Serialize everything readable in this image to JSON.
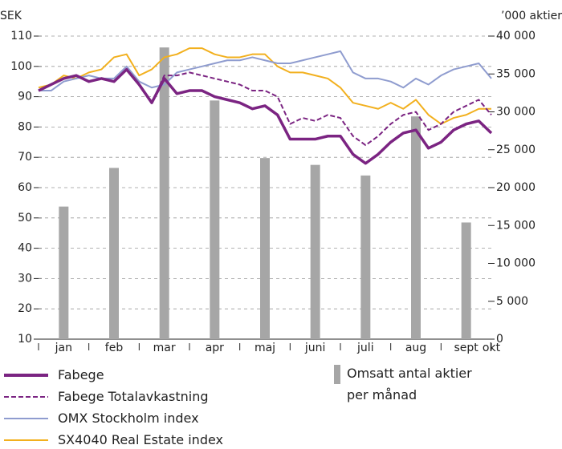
{
  "chart_data": {
    "type": "line",
    "y_label": "SEK",
    "y2_label": "’000 aktier",
    "categories": [
      null,
      null,
      "jan",
      null,
      null,
      null,
      "feb",
      null,
      null,
      null,
      "mar",
      null,
      null,
      null,
      "apr",
      null,
      null,
      null,
      "maj",
      null,
      null,
      null,
      "juni",
      null,
      null,
      null,
      "juli",
      null,
      null,
      null,
      "aug",
      null,
      null,
      null,
      "sept",
      null,
      "okt"
    ],
    "ylim": [
      10,
      110
    ],
    "yticks": [
      10,
      20,
      30,
      40,
      50,
      60,
      70,
      80,
      90,
      100,
      110
    ],
    "y2lim": [
      0,
      40000
    ],
    "y2ticks": [
      0,
      {
        "value": 5000,
        "label": "5 000"
      },
      {
        "value": 10000,
        "label": "10 000"
      },
      {
        "value": 15000,
        "label": "15 000"
      },
      {
        "value": 20000,
        "label": "20 000"
      },
      {
        "value": 25000,
        "label": "25 000"
      },
      {
        "value": 30000,
        "label": "30 000"
      },
      {
        "value": 35000,
        "label": "35 000"
      },
      {
        "value": 40000,
        "label": "40 000"
      }
    ],
    "grid": true,
    "series": [
      {
        "name": "Omsatt antal aktier per månad",
        "type": "bar",
        "axis": "y2",
        "color": "#a6a6a6",
        "values": [
          null,
          null,
          17500,
          null,
          null,
          null,
          22600,
          null,
          null,
          null,
          38500,
          null,
          null,
          null,
          31500,
          null,
          null,
          null,
          23900,
          null,
          null,
          null,
          23000,
          null,
          null,
          null,
          21600,
          null,
          null,
          null,
          29400,
          null,
          null,
          null,
          15400,
          null,
          null
        ]
      },
      {
        "name": "SX4040 Real Estate index",
        "type": "line",
        "color": "#f2b01e",
        "style": "solid",
        "values": [
          93,
          94,
          97,
          96,
          98,
          99,
          103,
          104,
          97,
          99,
          103,
          104,
          106,
          106,
          104,
          103,
          103,
          104,
          104,
          100,
          98,
          98,
          97,
          96,
          93,
          88,
          87,
          86,
          88,
          86,
          89,
          84,
          81,
          83,
          84,
          86,
          86
        ]
      },
      {
        "name": "OMX Stockholm index",
        "type": "line",
        "color": "#8f9ccf",
        "style": "solid",
        "values": [
          92,
          92,
          95,
          96,
          97,
          96,
          96,
          100,
          95,
          93,
          94,
          98,
          99,
          100,
          101,
          102,
          102,
          103,
          102,
          101,
          101,
          102,
          103,
          104,
          105,
          98,
          96,
          96,
          95,
          93,
          96,
          94,
          97,
          99,
          100,
          101,
          96
        ]
      },
      {
        "name": "Fabege Totalavkastning",
        "type": "line",
        "color": "#7b2482",
        "style": "dashed",
        "values": [
          92,
          94,
          96,
          97,
          95,
          96,
          95,
          99,
          94,
          88,
          97,
          97,
          98,
          97,
          96,
          95,
          94,
          92,
          92,
          90,
          81,
          83,
          82,
          84,
          83,
          77,
          74,
          77,
          81,
          84,
          85,
          79,
          81,
          85,
          87,
          89,
          84
        ]
      },
      {
        "name": "Fabege",
        "type": "line",
        "color": "#7b2482",
        "style": "bold",
        "values": [
          92,
          94,
          96,
          97,
          95,
          96,
          95,
          99,
          94,
          88,
          96,
          91,
          92,
          92,
          90,
          89,
          88,
          86,
          87,
          84,
          76,
          76,
          76,
          77,
          77,
          71,
          68,
          71,
          75,
          78,
          79,
          73,
          75,
          79,
          81,
          82,
          78
        ]
      }
    ],
    "legend_order": [
      4,
      3,
      2,
      1
    ]
  }
}
